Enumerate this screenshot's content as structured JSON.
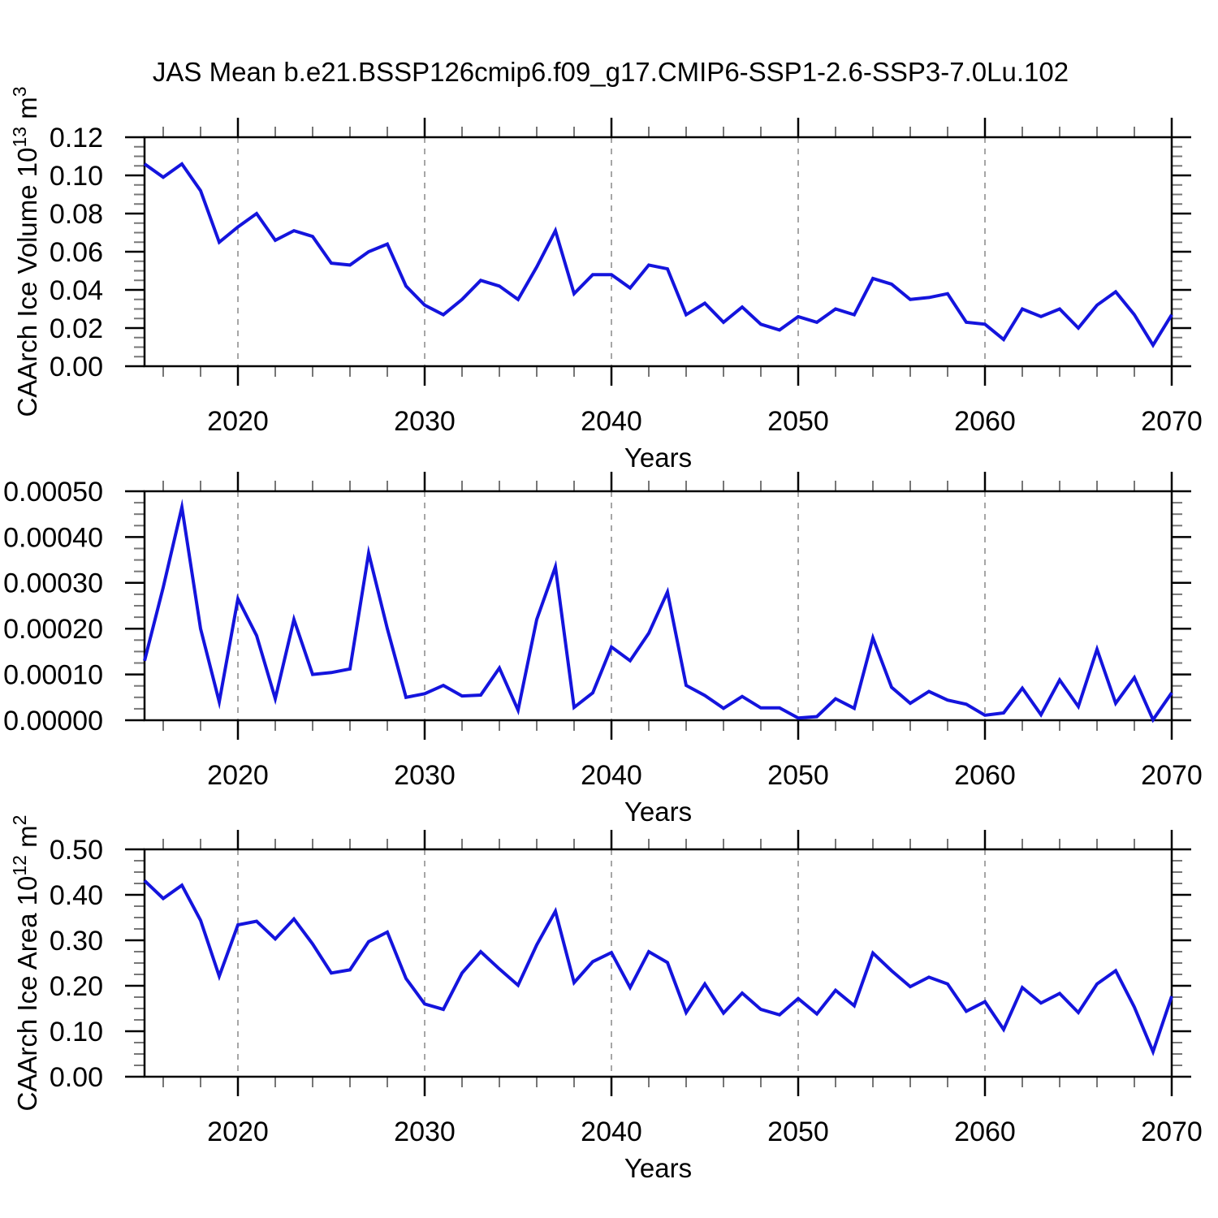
{
  "title": "JAS Mean b.e21.BSSP126cmip6.f09_g17.CMIP6-SSP1-2.6-SSP3-7.0Lu.102",
  "line_color": "#1414dd",
  "axis_color": "#000000",
  "minor_tick_color": "#777777",
  "gridline_color": "#888888",
  "chart_data": [
    {
      "type": "line",
      "panel": "top",
      "title": "",
      "xlabel": "Years",
      "ylabel": "CAArch Ice Volume 10^{13} m^{3}",
      "legend": "none",
      "grid": "vertical-dashed",
      "xlim": [
        2015,
        2070
      ],
      "ylim": [
        0,
        0.12
      ],
      "ytick_step": 0.02,
      "ytick_decimals": 2,
      "yminor_step": 0.005,
      "xticks": [
        2020,
        2030,
        2040,
        2050,
        2060,
        2070
      ],
      "xminor_step": 2,
      "grid_x": [
        2020,
        2030,
        2040,
        2050,
        2060
      ],
      "x": [
        2015,
        2016,
        2017,
        2018,
        2019,
        2020,
        2021,
        2022,
        2023,
        2024,
        2025,
        2026,
        2027,
        2028,
        2029,
        2030,
        2031,
        2032,
        2033,
        2034,
        2035,
        2036,
        2037,
        2038,
        2039,
        2040,
        2041,
        2042,
        2043,
        2044,
        2045,
        2046,
        2047,
        2048,
        2049,
        2050,
        2051,
        2052,
        2053,
        2054,
        2055,
        2056,
        2057,
        2058,
        2059,
        2060,
        2061,
        2062,
        2063,
        2064,
        2065,
        2066,
        2067,
        2068,
        2069,
        2070
      ],
      "y": [
        0.106,
        0.099,
        0.106,
        0.092,
        0.065,
        0.073,
        0.08,
        0.066,
        0.071,
        0.068,
        0.054,
        0.053,
        0.06,
        0.064,
        0.042,
        0.032,
        0.027,
        0.035,
        0.045,
        0.042,
        0.035,
        0.052,
        0.071,
        0.038,
        0.048,
        0.048,
        0.041,
        0.053,
        0.051,
        0.027,
        0.033,
        0.023,
        0.031,
        0.022,
        0.019,
        0.026,
        0.023,
        0.03,
        0.027,
        0.046,
        0.043,
        0.035,
        0.036,
        0.038,
        0.023,
        0.022,
        0.014,
        0.03,
        0.026,
        0.03,
        0.02,
        0.032,
        0.039,
        0.027,
        0.011,
        0.027
      ]
    },
    {
      "type": "line",
      "panel": "middle",
      "title": "",
      "xlabel": "Years",
      "ylabel": "",
      "legend": "none",
      "grid": "vertical-dashed",
      "xlim": [
        2015,
        2070
      ],
      "ylim": [
        0,
        0.0005
      ],
      "ytick_step": 0.0001,
      "ytick_decimals": 5,
      "yminor_step": 2.5e-05,
      "xticks": [
        2020,
        2030,
        2040,
        2050,
        2060,
        2070
      ],
      "xminor_step": 2,
      "grid_x": [
        2020,
        2030,
        2040,
        2050,
        2060
      ],
      "x": [
        2015,
        2016,
        2017,
        2018,
        2019,
        2020,
        2021,
        2022,
        2023,
        2024,
        2025,
        2026,
        2027,
        2028,
        2029,
        2030,
        2031,
        2032,
        2033,
        2034,
        2035,
        2036,
        2037,
        2038,
        2039,
        2040,
        2041,
        2042,
        2043,
        2044,
        2045,
        2046,
        2047,
        2048,
        2049,
        2050,
        2051,
        2052,
        2053,
        2054,
        2055,
        2056,
        2057,
        2058,
        2059,
        2060,
        2061,
        2062,
        2063,
        2064,
        2065,
        2066,
        2067,
        2068,
        2069,
        2070
      ],
      "y": [
        0.00013,
        0.00029,
        0.000465,
        0.0002,
        4e-05,
        0.000265,
        0.000185,
        4.7e-05,
        0.00022,
        0.0001,
        0.000104,
        0.000112,
        0.000365,
        0.0002,
        5e-05,
        5.8e-05,
        7.6e-05,
        5.3e-05,
        5.5e-05,
        0.000114,
        2.2e-05,
        0.00022,
        0.000335,
        2.8e-05,
        6e-05,
        0.00016,
        0.00013,
        0.00019,
        0.00028,
        7.6e-05,
        5.4e-05,
        2.6e-05,
        5.2e-05,
        2.7e-05,
        2.7e-05,
        5e-06,
        8e-06,
        4.7e-05,
        2.6e-05,
        0.00018,
        7.2e-05,
        3.7e-05,
        6.3e-05,
        4.4e-05,
        3.5e-05,
        1.1e-05,
        1.6e-05,
        7e-05,
        1.2e-05,
        8.8e-05,
        3e-05,
        0.000155,
        3.7e-05,
        9.3e-05,
        1e-06,
        6e-05
      ]
    },
    {
      "type": "line",
      "panel": "bottom",
      "title": "",
      "xlabel": "Years",
      "ylabel": "CAArch Ice Area 10^{12} m^{2}",
      "legend": "none",
      "grid": "vertical-dashed",
      "xlim": [
        2015,
        2070
      ],
      "ylim": [
        0,
        0.5
      ],
      "ytick_step": 0.1,
      "ytick_decimals": 2,
      "yminor_step": 0.025,
      "xticks": [
        2020,
        2030,
        2040,
        2050,
        2060,
        2070
      ],
      "xminor_step": 2,
      "grid_x": [
        2020,
        2030,
        2040,
        2050,
        2060
      ],
      "x": [
        2015,
        2016,
        2017,
        2018,
        2019,
        2020,
        2021,
        2022,
        2023,
        2024,
        2025,
        2026,
        2027,
        2028,
        2029,
        2030,
        2031,
        2032,
        2033,
        2034,
        2035,
        2036,
        2037,
        2038,
        2039,
        2040,
        2041,
        2042,
        2043,
        2044,
        2045,
        2046,
        2047,
        2048,
        2049,
        2050,
        2051,
        2052,
        2053,
        2054,
        2055,
        2056,
        2057,
        2058,
        2059,
        2060,
        2061,
        2062,
        2063,
        2064,
        2065,
        2066,
        2067,
        2068,
        2069,
        2070
      ],
      "y": [
        0.431,
        0.392,
        0.421,
        0.344,
        0.221,
        0.334,
        0.342,
        0.303,
        0.347,
        0.292,
        0.228,
        0.235,
        0.297,
        0.318,
        0.216,
        0.16,
        0.148,
        0.228,
        0.275,
        0.237,
        0.201,
        0.29,
        0.364,
        0.207,
        0.253,
        0.273,
        0.196,
        0.275,
        0.251,
        0.141,
        0.204,
        0.14,
        0.184,
        0.148,
        0.136,
        0.172,
        0.138,
        0.19,
        0.156,
        0.272,
        0.233,
        0.198,
        0.219,
        0.204,
        0.144,
        0.165,
        0.104,
        0.196,
        0.162,
        0.183,
        0.141,
        0.204,
        0.233,
        0.153,
        0.055,
        0.177
      ]
    }
  ]
}
